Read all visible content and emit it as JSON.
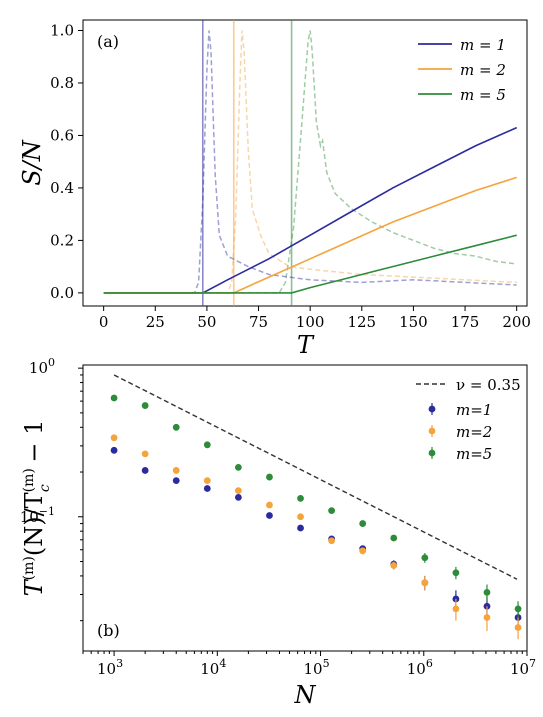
{
  "chart_data": [
    {
      "type": "line",
      "panel_label": "(a)",
      "title": "",
      "xlabel": "T",
      "ylabel": "S/N",
      "xlim": [
        -10,
        205
      ],
      "ylim": [
        -0.05,
        1.04
      ],
      "xticks": [
        "0",
        "25",
        "50",
        "75",
        "100",
        "125",
        "150",
        "175",
        "200"
      ],
      "yticks": [
        "0.0",
        "0.2",
        "0.4",
        "0.6",
        "0.8",
        "1.0"
      ],
      "legend_position": "top-right",
      "series": [
        {
          "name": "m = 1",
          "color": "#2b2b9e",
          "critical_T": 48,
          "x": [
            0,
            48,
            60,
            80,
            100,
            120,
            140,
            160,
            180,
            200
          ],
          "y": [
            0,
            0,
            0.05,
            0.13,
            0.22,
            0.31,
            0.4,
            0.48,
            0.56,
            0.63
          ]
        },
        {
          "name": "m = 2",
          "color": "#f5a33b",
          "critical_T": 63,
          "x": [
            0,
            63,
            80,
            100,
            120,
            140,
            160,
            180,
            200
          ],
          "y": [
            0,
            0,
            0.06,
            0.13,
            0.2,
            0.27,
            0.33,
            0.39,
            0.44
          ]
        },
        {
          "name": "m = 5",
          "color": "#2e8b3a",
          "critical_T": 91,
          "x": [
            0,
            91,
            100,
            120,
            140,
            160,
            180,
            200
          ],
          "y": [
            0,
            0,
            0.02,
            0.06,
            0.1,
            0.14,
            0.18,
            0.22
          ]
        }
      ],
      "dashed_series": [
        {
          "color": "#2b2b9e",
          "x": [
            0,
            44,
            46,
            48,
            50,
            51,
            52,
            54,
            56,
            60,
            70,
            80,
            100,
            125,
            150,
            175,
            200
          ],
          "y": [
            0,
            0,
            0.04,
            0.35,
            0.85,
            1.0,
            0.92,
            0.45,
            0.22,
            0.14,
            0.1,
            0.07,
            0.05,
            0.04,
            0.05,
            0.04,
            0.03
          ]
        },
        {
          "color": "#f5a33b",
          "x": [
            0,
            60,
            62,
            64,
            66,
            67,
            68,
            70,
            72,
            76,
            80,
            90,
            100,
            125,
            150,
            175,
            200
          ],
          "y": [
            0,
            0,
            0.04,
            0.3,
            0.8,
            1.0,
            0.92,
            0.55,
            0.32,
            0.22,
            0.15,
            0.1,
            0.09,
            0.07,
            0.06,
            0.05,
            0.04
          ]
        },
        {
          "color": "#2e8b3a",
          "x": [
            0,
            85,
            88,
            92,
            96,
            99,
            100,
            101,
            103,
            105,
            106,
            108,
            112,
            120,
            130,
            140,
            150,
            160,
            170,
            180,
            190,
            200
          ],
          "y": [
            0,
            0,
            0.04,
            0.25,
            0.65,
            0.96,
            1.0,
            0.92,
            0.65,
            0.56,
            0.58,
            0.46,
            0.38,
            0.32,
            0.27,
            0.23,
            0.2,
            0.17,
            0.15,
            0.14,
            0.12,
            0.11
          ]
        }
      ]
    },
    {
      "type": "scatter",
      "panel_label": "(b)",
      "title": "",
      "xlabel": "N",
      "ylabel": "T^(m)(N)/T_c^(m) − 1",
      "xscale": "log",
      "yscale": "log",
      "xlim": [
        500,
        10000000
      ],
      "ylim": [
        0.0125,
        1.05
      ],
      "xticks": [
        {
          "base": "10",
          "exp": "3"
        },
        {
          "base": "10",
          "exp": "4"
        },
        {
          "base": "10",
          "exp": "5"
        },
        {
          "base": "10",
          "exp": "6"
        },
        {
          "base": "10",
          "exp": "7"
        }
      ],
      "yticks": [
        {
          "base": "10",
          "exp": "0"
        },
        {
          "base": "10",
          "exp": "−1"
        }
      ],
      "legend_position": "top-right",
      "reference_line": {
        "name": "ν = 0.35",
        "x": [
          1000,
          8000000
        ],
        "y": [
          0.9,
          0.038
        ],
        "color": "#333333"
      },
      "series": [
        {
          "name": "m=1",
          "color": "#2b2b9e",
          "x": [
            1000,
            2000,
            4000,
            8000,
            16000,
            32000,
            64000,
            128000,
            256000,
            512000,
            1024000,
            2048000,
            4096000,
            8192000
          ],
          "y": [
            0.28,
            0.205,
            0.175,
            0.155,
            0.135,
            0.102,
            0.084,
            0.071,
            0.061,
            0.048,
            0.036,
            0.028,
            0.025,
            0.021
          ],
          "err": [
            0,
            0,
            0,
            0,
            0,
            0,
            0.004,
            0.003,
            0.003,
            0.003,
            0.004,
            0.004,
            0.004,
            0.003
          ]
        },
        {
          "name": "m=2",
          "color": "#f5a33b",
          "x": [
            1000,
            2000,
            4000,
            8000,
            16000,
            32000,
            64000,
            128000,
            256000,
            512000,
            1024000,
            2048000,
            4096000,
            8192000
          ],
          "y": [
            0.34,
            0.265,
            0.205,
            0.175,
            0.15,
            0.12,
            0.1,
            0.069,
            0.059,
            0.047,
            0.036,
            0.024,
            0.021,
            0.018
          ],
          "err": [
            0,
            0,
            0,
            0,
            0,
            0,
            0.004,
            0.003,
            0.003,
            0.003,
            0.004,
            0.004,
            0.004,
            0.003
          ]
        },
        {
          "name": "m=5",
          "color": "#2e8b3a",
          "x": [
            1000,
            2000,
            4000,
            8000,
            16000,
            32000,
            64000,
            128000,
            256000,
            512000,
            1024000,
            2048000,
            4096000,
            8192000
          ],
          "y": [
            0.63,
            0.56,
            0.4,
            0.305,
            0.215,
            0.185,
            0.133,
            0.11,
            0.09,
            0.072,
            0.053,
            0.042,
            0.031,
            0.024
          ],
          "err": [
            0,
            0,
            0,
            0,
            0,
            0,
            0.004,
            0.003,
            0.003,
            0.003,
            0.004,
            0.004,
            0.004,
            0.003
          ]
        }
      ]
    }
  ]
}
